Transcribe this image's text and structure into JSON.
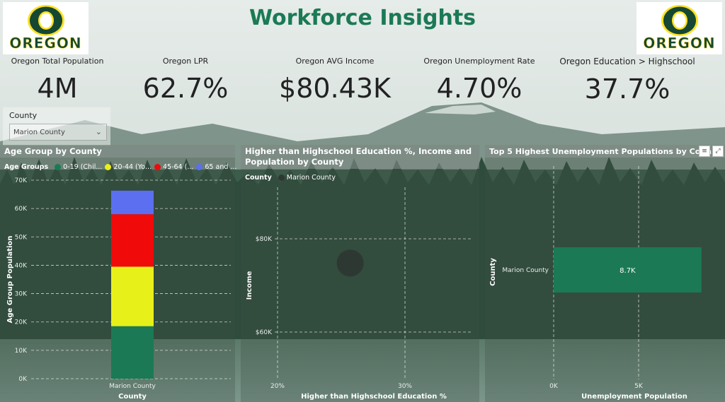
{
  "header": {
    "title": "Workforce Insights",
    "logo_text": "OREGON"
  },
  "kpis": [
    {
      "label": "Oregon Total Population",
      "value": "4M"
    },
    {
      "label": "Oregon LPR",
      "value": "62.7%"
    },
    {
      "label": "Oregon AVG Income",
      "value": "$80.43K"
    },
    {
      "label": "Oregon Unemployment Rate",
      "value": "4.70%"
    },
    {
      "label": "Oregon Education > Highschool",
      "value": "37.7%"
    }
  ],
  "slicer": {
    "label": "County",
    "selected": "Marion County"
  },
  "colors": {
    "green": "#1b7a55",
    "yellow": "#e8f01a",
    "red": "#f00a0a",
    "blue": "#5b6ff0",
    "bubble": "#2e3833",
    "oregon_green": "#154733",
    "oregon_yellow": "#FEE123"
  },
  "chart_data": [
    {
      "type": "bar",
      "stacked": true,
      "title": "Age Group by County",
      "legend_title": "Age Groups",
      "categories": [
        "Marion County"
      ],
      "series": [
        {
          "name": "0-19 (Chil...",
          "color": "#1b7a55",
          "values": [
            18500
          ]
        },
        {
          "name": "20-44 (Yo...",
          "color": "#e8f01a",
          "values": [
            21000
          ]
        },
        {
          "name": "45-64 (...",
          "color": "#f00a0a",
          "values": [
            18500
          ]
        },
        {
          "name": "65 and ...",
          "color": "#5b6ff0",
          "values": [
            8300
          ]
        }
      ],
      "yticks": [
        "0K",
        "10K",
        "20K",
        "30K",
        "40K",
        "50K",
        "60K",
        "70K"
      ],
      "ylim": [
        0,
        70000
      ],
      "xlabel": "County",
      "ylabel": "Age Group Population",
      "grid": true
    },
    {
      "type": "scatter",
      "title": "Higher than Highschool Education %, Income and Population by County",
      "title_lines": [
        "Higher than Highschool Education %, Income and",
        "Population by County"
      ],
      "legend_title": "County",
      "points": [
        {
          "name": "Marion County",
          "x": 25.7,
          "y": 74800,
          "color": "#2e3833"
        }
      ],
      "xticks": [
        "20%",
        "30%"
      ],
      "yticks": [
        "$60K",
        "$80K"
      ],
      "xlim": [
        20,
        30
      ],
      "ylim": [
        60000,
        80000
      ],
      "xlabel": "Higher than Highschool Education %",
      "ylabel": "Income",
      "grid": true
    },
    {
      "type": "bar",
      "orientation": "horizontal",
      "title": "Top 5 Highest Unemployment Populations by County",
      "title_display": "Top 5 Highest Unemployment Populations by Coun",
      "categories": [
        "Marion County"
      ],
      "values": [
        8700
      ],
      "data_labels": [
        "8.7K"
      ],
      "color": "#1b7a55",
      "xticks": [
        "0K",
        "5K"
      ],
      "xlim": [
        0,
        5000
      ],
      "xlabel": "Unemployment Population",
      "ylabel": "County",
      "grid": true
    }
  ]
}
